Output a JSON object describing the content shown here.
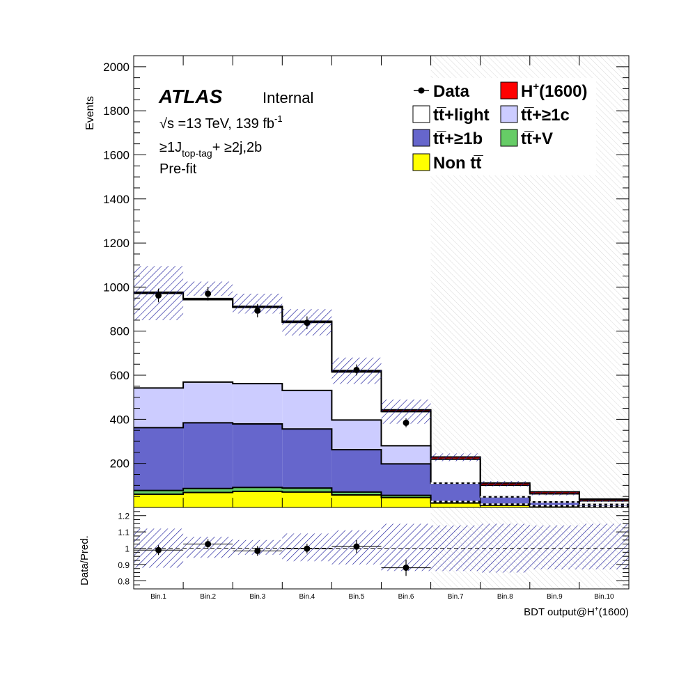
{
  "chart_data": [
    {
      "type": "bar",
      "stacked": true,
      "categories": [
        "Bin.1",
        "Bin.2",
        "Bin.3",
        "Bin.4",
        "Bin.5",
        "Bin.6",
        "Bin.7",
        "Bin.8",
        "Bin.9",
        "Bin.10"
      ],
      "ylabel": "Events",
      "ylim": [
        0,
        2050
      ],
      "yticks": [
        200,
        400,
        600,
        800,
        1000,
        1200,
        1400,
        1600,
        1800,
        2000
      ],
      "series": [
        {
          "name": "Non tt̅",
          "color": "#ffff00",
          "values": [
            60,
            68,
            73,
            70,
            57,
            45,
            20,
            10,
            5,
            3
          ]
        },
        {
          "name": "tt̅+V",
          "color": "#66cc66",
          "values": [
            17,
            18,
            18,
            18,
            13,
            10,
            7,
            5,
            3,
            2
          ]
        },
        {
          "name": "tt̅+≥1b",
          "color": "#6666cc",
          "values": [
            285,
            298,
            288,
            268,
            192,
            143,
            83,
            33,
            17,
            9
          ]
        },
        {
          "name": "tt̅+≥1c",
          "color": "#ccccff",
          "values": [
            180,
            185,
            183,
            175,
            135,
            82,
            0,
            0,
            0,
            0
          ]
        },
        {
          "name": "tt̅+light",
          "color": "#ffffff",
          "values": [
            430,
            374,
            346,
            309,
            218,
            155,
            109,
            53,
            37,
            16
          ]
        },
        {
          "name": "H⁺(1600)",
          "color": "#ff0000",
          "values": [
            5,
            5,
            5,
            5,
            6,
            8,
            10,
            10,
            9,
            8
          ]
        }
      ],
      "data": {
        "name": "Data",
        "values": [
          962,
          970,
          893,
          838,
          624,
          384,
          null,
          null,
          null,
          null
        ],
        "errors": [
          31,
          31,
          30,
          29,
          25,
          20,
          null,
          null,
          null,
          null
        ]
      },
      "uncertainty": {
        "low": [
          850,
          960,
          880,
          780,
          560,
          380,
          210,
          95,
          55,
          25
        ],
        "high": [
          1095,
          1025,
          970,
          900,
          680,
          490,
          245,
          120,
          70,
          35
        ]
      },
      "blinded_from_bin": 7
    },
    {
      "type": "scatter",
      "categories": [
        "Bin.1",
        "Bin.2",
        "Bin.3",
        "Bin.4",
        "Bin.5",
        "Bin.6",
        "Bin.7",
        "Bin.8",
        "Bin.9",
        "Bin.10"
      ],
      "ylabel": "Data/Pred.",
      "xlabel": "BDT output@H⁺(1600)",
      "ylim": [
        0.75,
        1.25
      ],
      "yticks": [
        0.8,
        0.9,
        1,
        1.1,
        1.2
      ],
      "ytick_labels": [
        "0.8",
        "0.9",
        "1",
        "1.1",
        "1.2"
      ],
      "values": [
        0.988,
        1.025,
        0.983,
        0.997,
        1.01,
        0.88,
        null,
        null,
        null,
        null
      ],
      "errors": [
        0.03,
        0.03,
        0.03,
        0.03,
        0.04,
        0.05,
        null,
        null,
        null,
        null
      ],
      "band_low": [
        0.88,
        0.94,
        0.96,
        0.92,
        0.9,
        0.86,
        0.86,
        0.85,
        0.87,
        0.87
      ],
      "band_high": [
        1.12,
        1.07,
        1.05,
        1.09,
        1.11,
        1.15,
        1.14,
        1.15,
        1.14,
        1.15
      ]
    }
  ],
  "labels": {
    "atlas": "ATLAS",
    "internal": "Internal",
    "energy": "√s =13 TeV, 139 fb",
    "energy_sup": "-1",
    "region_a": "≥1J",
    "region_sub": "top-tag",
    "region_b": "+ ≥2j,2b",
    "fit": "Pre-fit"
  },
  "legend": [
    {
      "label": "Data",
      "style": "marker"
    },
    {
      "label": "H",
      "sup": "+",
      "tail": "(1600)",
      "color": "#ff0000"
    },
    {
      "label": "tt̅+light",
      "color": "#ffffff"
    },
    {
      "label": "tt̅+≥1c",
      "color": "#ccccff"
    },
    {
      "label": "tt̅+≥1b",
      "color": "#6666cc"
    },
    {
      "label": "tt̅+V",
      "color": "#66cc66"
    },
    {
      "label": "Non tt̅",
      "color": "#ffff00"
    }
  ]
}
